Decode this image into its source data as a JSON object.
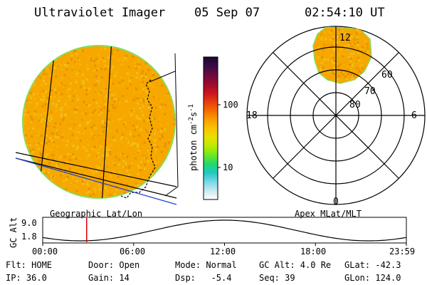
{
  "header": {
    "instrument": "Ultraviolet Imager",
    "date": "05 Sep 07",
    "time": "02:54:10 UT"
  },
  "colorbar": {
    "label": "photon cm^-2 s^-1",
    "label_main": "photon cm",
    "label_exp1": "-2",
    "label_mid": "s",
    "label_exp2": "-1",
    "tick_high": "100",
    "tick_low": "10",
    "colors": [
      "#1b0830",
      "#3a0a45",
      "#6a0a40",
      "#9a0a30",
      "#c81420",
      "#e63a10",
      "#f56a00",
      "#fb9c00",
      "#f7c400",
      "#e8e000",
      "#b8ec00",
      "#70e820",
      "#20d870",
      "#20c8c0",
      "#78d8e8",
      "#c8e8f0",
      "#ffffff"
    ]
  },
  "left_panel": {
    "caption": "Geographic Lat/Lon",
    "image_colors": [
      "#f5a300",
      "#f8b200",
      "#f0c020",
      "#e89000"
    ]
  },
  "right_panel": {
    "caption": "Apex MLat/MLT",
    "labels": {
      "top": "12",
      "left": "18",
      "right": "6",
      "bottom": "0",
      "lat60": "60",
      "lat70": "70",
      "lat80": "80"
    }
  },
  "timeline": {
    "axis_label": "GC Alt",
    "y_top": "9.0",
    "y_bottom": "1.8",
    "ticks": [
      "00:00",
      "06:00",
      "12:00",
      "18:00",
      "23:59"
    ],
    "current_marker_hour": 2.9
  },
  "info": {
    "col1": [
      "Flt: HOME",
      "IP: 36.0"
    ],
    "col2": [
      "Door: Open",
      "Gain: 14"
    ],
    "col3": [
      "Mode: Normal",
      "Dsp:   -5.4"
    ],
    "col4": [
      "GC Alt: 4.0 Re",
      "Seq: 39"
    ],
    "col5": [
      "GLat: -42.3",
      "GLon: 124.0"
    ]
  }
}
